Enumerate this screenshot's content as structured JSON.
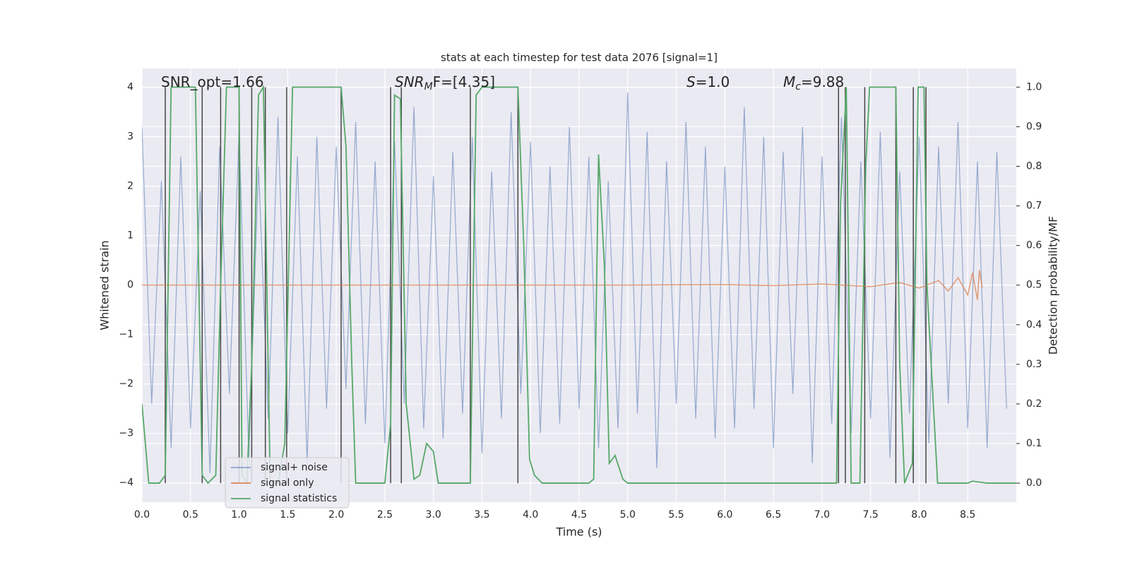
{
  "chart_data": {
    "type": "line",
    "title": "stats at each timestep for test data 2076 [signal=1]",
    "xlabel": "Time (s)",
    "ylabel": "Whitened strain",
    "y2label": "Detection probability/MF",
    "grid": true,
    "legend": "lower left",
    "xlim": [
      0,
      9.0
    ],
    "ylim": [
      -4.39,
      4.38
    ],
    "y2lim": [
      -0.048,
      1.047
    ],
    "xticks": [
      {
        "value": 0,
        "label": "0.0"
      },
      0.5,
      {
        "value": 1,
        "label": "1.0"
      },
      1.5,
      {
        "value": 2,
        "label": "2.0"
      },
      2.5,
      {
        "value": 3,
        "label": "3.0"
      },
      3.5,
      {
        "value": 4,
        "label": "4.0"
      },
      4.5,
      {
        "value": 5,
        "label": "5.0"
      },
      5.5,
      {
        "value": 6,
        "label": "6.0"
      },
      6.5,
      {
        "value": 7,
        "label": "7.0"
      },
      7.5,
      {
        "value": 8,
        "label": "8.0"
      },
      8.5
    ],
    "yticks": [
      {
        "value": -4,
        "label": "−4"
      },
      {
        "value": -3,
        "label": "−3"
      },
      {
        "value": -2,
        "label": "−2"
      },
      {
        "value": -1,
        "label": "−1"
      },
      0,
      1,
      2,
      3,
      4
    ],
    "y2ticks": [
      {
        "value": 0,
        "label": "0.0"
      },
      0.1,
      0.2,
      0.3,
      0.4,
      0.5,
      0.6,
      0.7,
      0.8,
      0.9,
      {
        "value": 1,
        "label": "1.0"
      }
    ],
    "annotations": [
      {
        "text": "SNR_opt=1.66"
      },
      {
        "text": "SNR",
        "sub": "M",
        "tail": "F=[4.35]"
      },
      {
        "text": "S",
        "tail": "=1.0"
      },
      {
        "text": "M",
        "sub": "c",
        "tail": "=9.88"
      }
    ],
    "series": [
      {
        "name": "signal+ noise",
        "color": "#4c72b0",
        "x": [
          0,
          0.1,
          0.2,
          0.3,
          0.4,
          0.5,
          0.6,
          0.7,
          0.8,
          0.9,
          1,
          1.1,
          1.2,
          1.3,
          1.4,
          1.5,
          1.6,
          1.7,
          1.8,
          1.9,
          2,
          2.1,
          2.2,
          2.3,
          2.4,
          2.5,
          2.6,
          2.7,
          2.8,
          2.9,
          3,
          3.1,
          3.2,
          3.3,
          3.4,
          3.5,
          3.6,
          3.7,
          3.8,
          3.9,
          4,
          4.1,
          4.2,
          4.3,
          4.4,
          4.5,
          4.6,
          4.7,
          4.8,
          4.9,
          5,
          5.1,
          5.2,
          5.3,
          5.4,
          5.5,
          5.6,
          5.7,
          5.8,
          5.9,
          6,
          6.1,
          6.2,
          6.3,
          6.4,
          6.5,
          6.6,
          6.7,
          6.8,
          6.9,
          7,
          7.1,
          7.2,
          7.3,
          7.4,
          7.5,
          7.6,
          7.7,
          7.8,
          7.9,
          8,
          8.1,
          8.2,
          8.3,
          8.4,
          8.5,
          8.6,
          8.7,
          8.8,
          8.9
        ],
        "values": [
          3.2,
          -2.4,
          2.1,
          -3.3,
          2.6,
          -2.9,
          1.9,
          -3.8,
          2.8,
          -2.2,
          3.1,
          -3.5,
          2.4,
          -2.7,
          3.4,
          -3.0,
          2.6,
          -3.6,
          3.0,
          -2.5,
          2.8,
          -2.1,
          3.3,
          -2.8,
          2.5,
          -3.2,
          2.9,
          -2.4,
          3.6,
          -2.9,
          2.2,
          -3.1,
          2.7,
          -2.6,
          3.0,
          -3.4,
          2.3,
          -2.7,
          3.5,
          -2.2,
          2.9,
          -3.0,
          2.4,
          -2.8,
          3.2,
          -2.5,
          2.6,
          -3.3,
          2.1,
          -2.9,
          3.9,
          -2.6,
          3.1,
          -3.7,
          2.5,
          -2.4,
          3.3,
          -2.7,
          2.8,
          -3.1,
          2.4,
          -2.9,
          3.6,
          -2.5,
          3.0,
          -3.3,
          2.7,
          -2.2,
          3.2,
          -3.6,
          2.6,
          -2.8,
          3.4,
          -3.0,
          2.5,
          -2.7,
          3.1,
          -3.5,
          2.3,
          -2.6,
          3.0,
          -3.2,
          2.8,
          -2.4,
          3.3,
          -2.9,
          2.5,
          -3.3,
          2.7,
          -2.5
        ]
      },
      {
        "name": "signal only",
        "color": "#dd8452",
        "x": [
          0,
          5,
          6,
          6.5,
          7,
          7.5,
          7.8,
          8.0,
          8.2,
          8.3,
          8.4,
          8.5,
          8.55,
          8.6,
          8.62,
          8.65
        ],
        "values": [
          0,
          0,
          0.01,
          -0.01,
          0.02,
          -0.03,
          0.05,
          -0.06,
          0.09,
          -0.12,
          0.15,
          -0.2,
          0.25,
          -0.3,
          0.3,
          -0.05
        ]
      },
      {
        "name": "signal statistics",
        "color": "#55a868",
        "axis": "y2",
        "x": [
          0,
          0.07,
          0.18,
          0.24,
          0.3,
          0.55,
          0.62,
          0.68,
          0.76,
          0.81,
          0.87,
          1.0,
          1.03,
          1.08,
          1.13,
          1.2,
          1.25,
          1.32,
          1.4,
          1.47,
          1.55,
          2.05,
          2.1,
          2.16,
          2.2,
          2.5,
          2.56,
          2.6,
          2.66,
          2.72,
          2.8,
          2.86,
          2.93,
          3.0,
          3.05,
          3.38,
          3.44,
          3.5,
          3.87,
          3.93,
          3.99,
          4.04,
          4.12,
          4.4,
          4.6,
          4.65,
          4.7,
          4.76,
          4.81,
          4.87,
          4.95,
          5.0,
          7.15,
          7.19,
          7.25,
          7.3,
          7.39,
          7.45,
          7.49,
          7.76,
          7.8,
          7.85,
          7.93,
          7.99,
          8.05,
          8.08,
          8.19,
          8.5,
          8.55,
          8.7,
          9.0
        ],
        "values": [
          0.2,
          0,
          0,
          0.02,
          1,
          1,
          0.02,
          0,
          0.02,
          0.5,
          1,
          1,
          0.02,
          0,
          0.3,
          0.98,
          1,
          0,
          0,
          0.1,
          1,
          1,
          0.85,
          0.3,
          0,
          0,
          0.15,
          0.98,
          0.97,
          0.2,
          0.01,
          0.02,
          0.1,
          0.08,
          0,
          0,
          0.98,
          1,
          1,
          0.6,
          0.06,
          0.02,
          0,
          0,
          0,
          0.01,
          0.83,
          0.55,
          0.05,
          0.07,
          0.01,
          0,
          0,
          0.7,
          1,
          0,
          0,
          0.8,
          1,
          1,
          0.3,
          0,
          0.05,
          1,
          1,
          0.5,
          0,
          0,
          0.005,
          0,
          0
        ]
      }
    ],
    "vlines": {
      "color": "#444444",
      "range": [
        0,
        1
      ],
      "x": [
        0.24,
        0.62,
        0.81,
        1.0,
        1.13,
        1.27,
        1.49,
        2.05,
        2.56,
        2.67,
        3.38,
        3.87,
        7.17,
        7.24,
        7.44,
        7.76,
        7.94,
        8.07
      ]
    }
  }
}
